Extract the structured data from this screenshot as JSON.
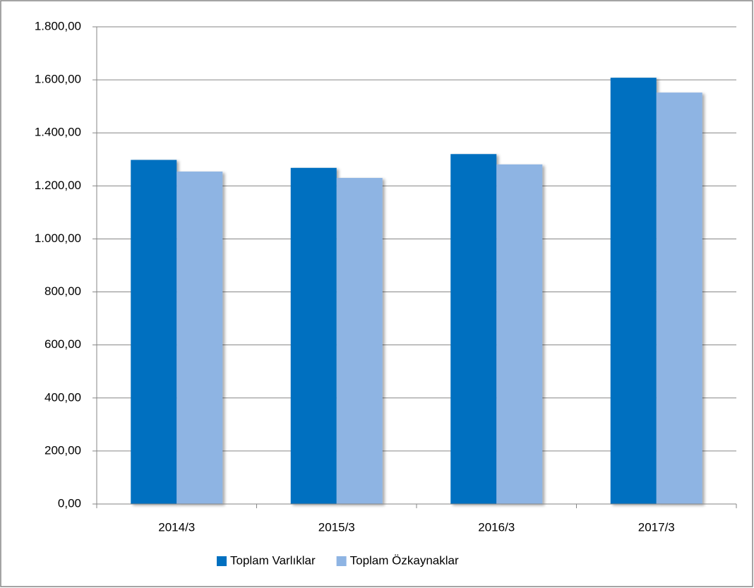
{
  "chart_data": {
    "type": "bar",
    "categories": [
      "2014/3",
      "2015/3",
      "2016/3",
      "2017/3"
    ],
    "series": [
      {
        "name": "Toplam Varlıklar",
        "color": "#0070c0",
        "values": [
          1298,
          1268,
          1320,
          1608
        ]
      },
      {
        "name": "Toplam Özkaynaklar",
        "color": "#8eb4e3",
        "values": [
          1254,
          1230,
          1281,
          1552
        ]
      }
    ],
    "ylim": [
      0,
      1800
    ],
    "yticks": [
      {
        "value": 0,
        "label": "0,00"
      },
      {
        "value": 200,
        "label": "200,00"
      },
      {
        "value": 400,
        "label": "400,00"
      },
      {
        "value": 600,
        "label": "600,00"
      },
      {
        "value": 800,
        "label": "800,00"
      },
      {
        "value": 1000,
        "label": "1.000,00"
      },
      {
        "value": 1200,
        "label": "1.200,00"
      },
      {
        "value": 1400,
        "label": "1.400,00"
      },
      {
        "value": 1600,
        "label": "1.600,00"
      },
      {
        "value": 1800,
        "label": "1.800,00"
      }
    ],
    "grid": true,
    "legend": "bottom"
  }
}
